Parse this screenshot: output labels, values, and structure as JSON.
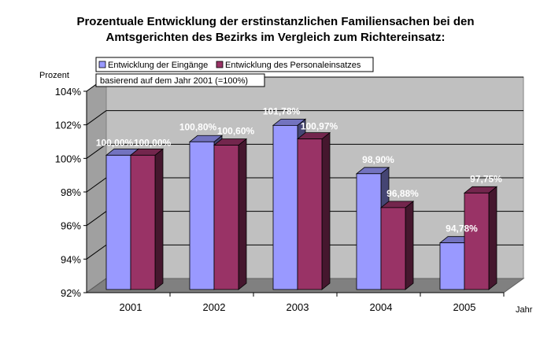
{
  "chart_data": {
    "type": "bar",
    "title_line1": "Prozentuale Entwicklung der erstinstanzlichen Familiensachen bei den",
    "title_line2": "Amtsgerichten des Bezirks im Vergleich zum Richtereinsatz:",
    "ylabel": "Prozent",
    "xlabel": "Jahr",
    "annotation": "basierend auf dem Jahr 2001 (=100%)",
    "categories": [
      "2001",
      "2002",
      "2003",
      "2004",
      "2005"
    ],
    "ylim": [
      92,
      104
    ],
    "yticks": [
      92,
      94,
      96,
      98,
      100,
      102,
      104
    ],
    "ytick_labels": [
      "92%",
      "94%",
      "96%",
      "98%",
      "100%",
      "102%",
      "104%"
    ],
    "grid": true,
    "legend_position": "top-left",
    "series": [
      {
        "name": "Entwicklung der Eingänge",
        "color": "#9999ff",
        "values": [
          100.0,
          100.8,
          101.78,
          98.9,
          94.78
        ],
        "labels": [
          "100,00%",
          "100,80%",
          "101,78%",
          "98,90%",
          "94,78%"
        ]
      },
      {
        "name": "Entwicklung des Personaleinsatzes",
        "color": "#993366",
        "values": [
          100.0,
          100.6,
          100.97,
          96.88,
          97.75
        ],
        "labels": [
          "100,00%",
          "100,60%",
          "100,97%",
          "96,88%",
          "97,75%"
        ]
      }
    ]
  }
}
